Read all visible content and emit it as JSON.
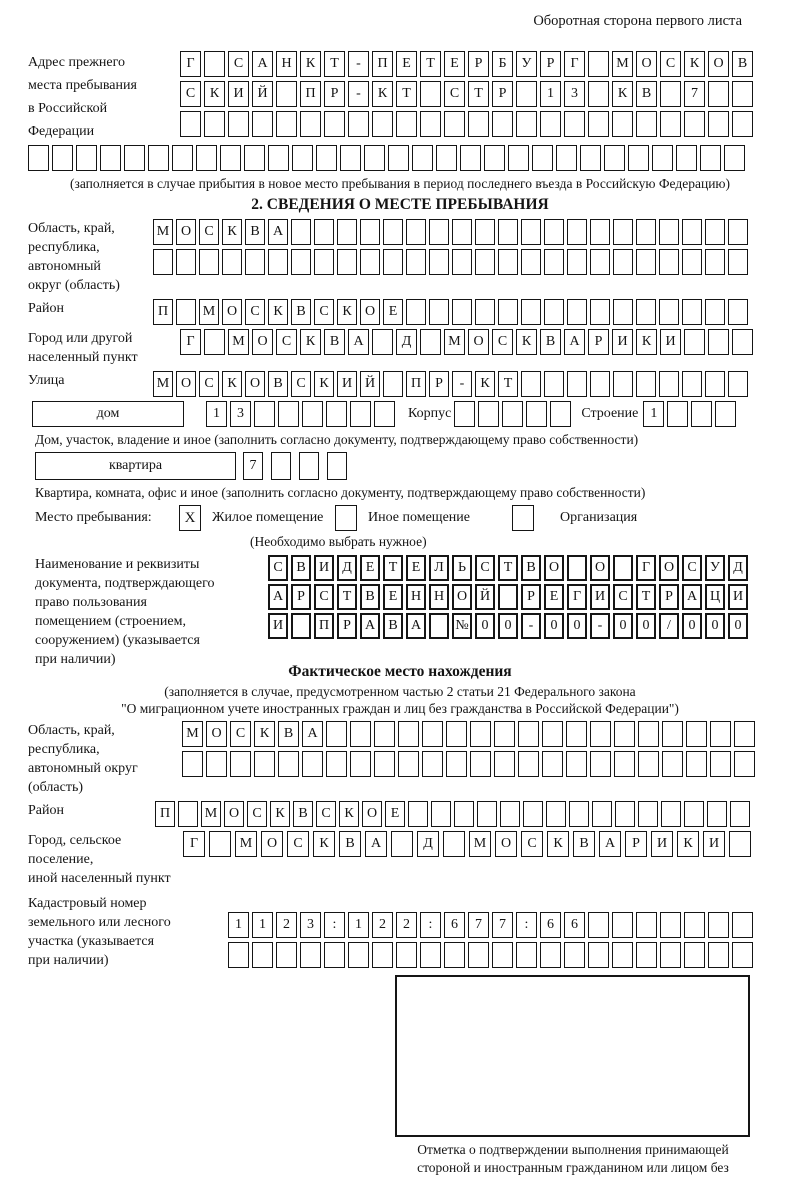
{
  "colors": {
    "ink": "#141414",
    "paper": "#ffffff"
  },
  "page": {
    "corner_note": "Оборотная сторона первого листа"
  },
  "prev_address": {
    "label": "Адрес прежнего\nместа пребывания\nв Российской\nФедерации",
    "row1": {
      "text": "Г САНКТ-ПЕТЕРБУРГ МОСКОВ",
      "cols": 24
    },
    "row2": {
      "text": "СКИЙ ПР-КТ СТР 13 КВ 7",
      "cols": 24
    },
    "row3": {
      "text": "",
      "cols": 24
    },
    "row4": {
      "text": "",
      "cols": 30
    },
    "note": "(заполняется в случае прибытия в новое место пребывания в период последнего въезда в Российскую Федерацию)"
  },
  "section2": {
    "title": "2. СВЕДЕНИЯ О МЕСТЕ ПРЕБЫВАНИЯ",
    "region": {
      "label": "Область, край,\nреспублика,\nавтономный\nокруг (область)",
      "row1": {
        "text": "МОСКВА",
        "cols": 26
      },
      "row2": {
        "text": "",
        "cols": 26
      }
    },
    "district": {
      "label": "Район",
      "row": {
        "text": "П МОСКВСКОЕ",
        "cols": 26
      }
    },
    "city": {
      "label": "Город или другой\nнаселенный пункт",
      "row": {
        "text": "Г МОСКВА Д МОСКВАРИКИ",
        "cols": 24
      }
    },
    "street": {
      "label": "Улица",
      "row": {
        "text": "МОСКОВСКИЙ ПР-КТ",
        "cols": 26
      }
    },
    "house": {
      "type_label": "дом",
      "number": {
        "text": "13",
        "cols": 8
      },
      "korpus_label": "Корпус",
      "korpus": {
        "text": "",
        "cols": 5
      },
      "stroenie_label": "Строение",
      "stroenie": {
        "text": "1",
        "cols": 4
      },
      "note": "Дом, участок, владение и иное (заполнить согласно документу, подтверждающему право собственности)"
    },
    "apartment": {
      "type_label": "квартира",
      "number": {
        "text": "7",
        "cols": 4
      },
      "note": "Квартира, комната, офис и иное (заполнить согласно документу, подтверждающему право собственности)"
    },
    "stay_type": {
      "label": "Место пребывания:",
      "options": [
        {
          "label": "Жилое помещение",
          "mark": "X"
        },
        {
          "label": "Иное помещение",
          "mark": ""
        },
        {
          "label": "Организация",
          "mark": ""
        }
      ],
      "note": "(Необходимо выбрать нужное)"
    },
    "document": {
      "label": "Наименование и реквизиты\nдокумента, подтверждающего\nправо пользования\nпомещением (строением,\nсооружением) (указывается\nпри наличии)",
      "row1": {
        "text": "СВИДЕТЕЛЬСТВО О ГОСУД",
        "cols": 21
      },
      "row2": {
        "text": "АРСТВЕННОЙ РЕГИСТРАЦИ",
        "cols": 21
      },
      "row3": {
        "text": "И ПРАВА №00-00-00/000",
        "cols": 21
      }
    }
  },
  "actual_location": {
    "title": "Фактическое место нахождения",
    "note": "(заполняется в случае, предусмотренном частью 2 статьи 21 Федерального закона\n\"О миграционном учете иностранных граждан и лиц без гражданства в Российской Федерации\")",
    "region": {
      "label": "Область, край,\nреспублика,\nавтономный округ\n(область)",
      "row1": {
        "text": "МОСКВА",
        "cols": 24
      },
      "row2": {
        "text": "",
        "cols": 24
      }
    },
    "district": {
      "label": "Район",
      "row": {
        "text": "П МОСКВСКОЕ",
        "cols": 26
      }
    },
    "city": {
      "label": "Город, сельское поселение,\nиной населенный пункт",
      "row": {
        "text": "Г МОСКВА Д МОСКВАРИКИ",
        "cols": 22
      }
    },
    "cadastral": {
      "label": "Кадастровый номер\nземельного или лесного\nучастка (указывается\nпри наличии)",
      "row1": {
        "text": "1123:122:677:66",
        "cols": 22
      },
      "row2": {
        "text": "",
        "cols": 22
      }
    },
    "stamp_caption": "Отметка о подтверждении выполнения принимающей\nстороной и иностранным гражданином или лицом без\nгражданства действий, необходимых для его постановки\nна учет по месту пребывания"
  }
}
